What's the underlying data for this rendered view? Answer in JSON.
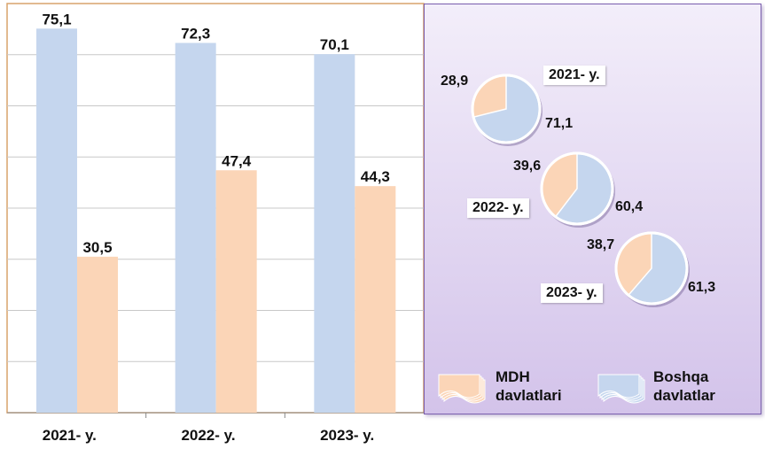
{
  "colors": {
    "boshqa": "#c5d6ee",
    "mdh": "#fbd5b7",
    "grid": "#c8c8c8",
    "frame": "#d9a36b"
  },
  "chart_data": [
    {
      "type": "bar",
      "categories": [
        "2021- y.",
        "2022- y.",
        "2023- y."
      ],
      "series": [
        {
          "name": "Boshqa davlatlar",
          "values": [
            75.1,
            72.3,
            70.1
          ],
          "labels": [
            "75,1",
            "72,3",
            "70,1"
          ]
        },
        {
          "name": "MDH davlatlari",
          "values": [
            30.5,
            47.4,
            44.3
          ],
          "labels": [
            "30,5",
            "47,4",
            "44,3"
          ]
        }
      ],
      "ylim": [
        0,
        80
      ],
      "grid": true
    },
    {
      "type": "pie",
      "pies": [
        {
          "label": "2021- y.",
          "mdh": 28.9,
          "boshqa": 71.1,
          "mdh_label": "28,9",
          "boshqa_label": "71,1"
        },
        {
          "label": "2022- y.",
          "mdh": 39.6,
          "boshqa": 60.4,
          "mdh_label": "39,6",
          "boshqa_label": "60,4"
        },
        {
          "label": "2023- y.",
          "mdh": 38.7,
          "boshqa": 61.3,
          "mdh_label": "38,7",
          "boshqa_label": "61,3"
        }
      ]
    }
  ],
  "legend": {
    "mdh": "MDH\ndavlatlari",
    "boshqa": "Boshqa\ndavlatlar"
  }
}
